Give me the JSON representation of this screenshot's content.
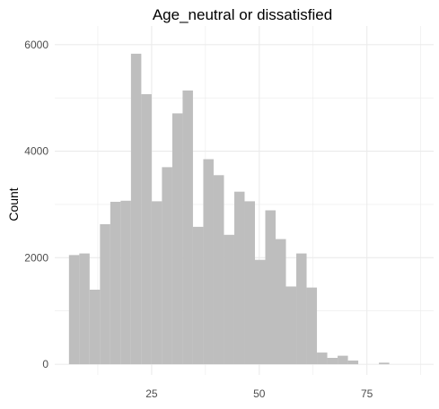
{
  "chart_data": {
    "type": "bar",
    "title": "Age_neutral or dissatisfied",
    "xlabel": "",
    "ylabel": "Count",
    "bin_width": 2.4,
    "bin_start": 5.8,
    "values": [
      2050,
      2080,
      1400,
      2630,
      3050,
      3070,
      5830,
      5070,
      3060,
      3700,
      4710,
      5140,
      2580,
      3850,
      3550,
      2430,
      3240,
      3060,
      1960,
      2890,
      2350,
      1460,
      2080,
      1440,
      220,
      120,
      160,
      70,
      0,
      0,
      30
    ],
    "xlim": [
      2.5,
      90.5
    ],
    "ylim": [
      -200,
      6350
    ],
    "x_ticks": [
      25,
      50,
      75
    ],
    "y_ticks": [
      0,
      2000,
      4000,
      6000
    ],
    "x_tick_labels": [
      "25",
      "50",
      "75"
    ],
    "y_tick_labels": [
      "0",
      "2000",
      "4000",
      "6000"
    ],
    "grid": true,
    "bar_color": "#bebebe",
    "grid_color": "#ebebeb"
  }
}
